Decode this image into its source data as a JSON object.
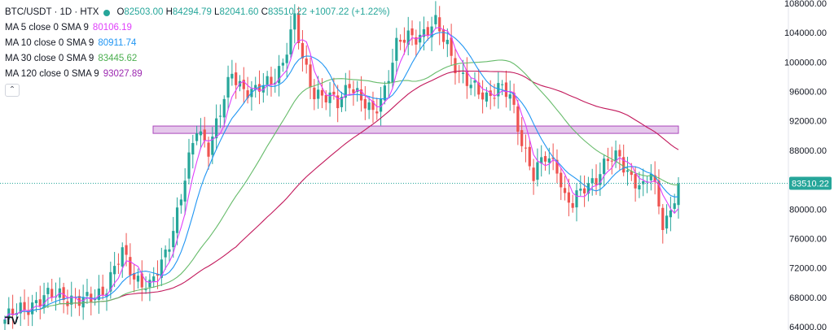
{
  "header": {
    "symbol": "BTC/USDT · 1D · HTX",
    "ohlc": {
      "o_key": "O",
      "o": "82503.00",
      "h_key": "H",
      "h": "84294.79",
      "l_key": "L",
      "l": "82041.60",
      "c_key": "C",
      "c": "83510.22",
      "change": "+1007.22 (+1.22%)"
    }
  },
  "indicators": [
    {
      "label": "MA 5 close 0 SMA 9",
      "value": "80106.19",
      "color": "#e040fb"
    },
    {
      "label": "MA 10 close 0 SMA 9",
      "value": "80911.74",
      "color": "#2196f3"
    },
    {
      "label": "MA 30 close 0 SMA 9",
      "value": "83445.62",
      "color": "#4caf50"
    },
    {
      "label": "MA 120 close 0 SMA 9",
      "value": "93027.89",
      "color": "#9c27b0"
    }
  ],
  "collapse_glyph": "⌃",
  "logo_text": "TV",
  "colors": {
    "up": "#26a69a",
    "down": "#ef5350",
    "ma5": "#e040fb",
    "ma10": "#2196f3",
    "ma30": "#66bb6a",
    "ma120": "#c2185b",
    "zone_fill": "#e1bee7",
    "zone_stroke": "#ab47bc",
    "price_line": "#26a69a"
  },
  "chart_data": {
    "type": "candlestick",
    "ylim": [
      64000,
      108000
    ],
    "yticks": [
      64000,
      68000,
      72000,
      76000,
      80000,
      84000,
      88000,
      92000,
      96000,
      100000,
      104000,
      108000
    ],
    "ytick_labels": [
      "64000.00",
      "68000.00",
      "72000.00",
      "76000.00",
      "80000.00",
      "84000.00",
      "88000.00",
      "92000.00",
      "96000.00",
      "100000.00",
      "104000.00",
      "108000.00"
    ],
    "current_price": 83510.22,
    "current_price_label": "83510.22",
    "zone": {
      "y_low": 90300,
      "y_high": 91300
    },
    "close_path": [
      [
        0,
        65000
      ],
      [
        8,
        67500
      ],
      [
        14,
        68500
      ],
      [
        20,
        67200
      ],
      [
        26,
        69500
      ],
      [
        30,
        74000
      ],
      [
        33,
        71000
      ],
      [
        37,
        69200
      ],
      [
        40,
        72500
      ],
      [
        43,
        77500
      ],
      [
        46,
        84000
      ],
      [
        49,
        91000
      ],
      [
        52,
        88500
      ],
      [
        55,
        93000
      ],
      [
        58,
        98500
      ],
      [
        61,
        96500
      ],
      [
        64,
        95800
      ],
      [
        68,
        97500
      ],
      [
        71,
        100000
      ],
      [
        74,
        105500
      ],
      [
        76,
        100500
      ],
      [
        79,
        96000
      ],
      [
        82,
        95000
      ],
      [
        85,
        94500
      ],
      [
        88,
        97500
      ],
      [
        91,
        94500
      ],
      [
        94,
        93000
      ],
      [
        97,
        96500
      ],
      [
        100,
        102000
      ],
      [
        103,
        103500
      ],
      [
        107,
        104000
      ],
      [
        110,
        105000
      ],
      [
        113,
        102500
      ],
      [
        116,
        98500
      ],
      [
        119,
        96500
      ],
      [
        123,
        95500
      ],
      [
        126,
        96500
      ],
      [
        129,
        95200
      ],
      [
        132,
        89500
      ],
      [
        135,
        84500
      ],
      [
        138,
        87000
      ],
      [
        141,
        86000
      ],
      [
        143,
        81500
      ],
      [
        145,
        80500
      ],
      [
        148,
        83000
      ],
      [
        151,
        84500
      ],
      [
        154,
        86500
      ],
      [
        157,
        87000
      ],
      [
        160,
        84500
      ],
      [
        163,
        82500
      ],
      [
        165,
        85000
      ],
      [
        168,
        78500
      ],
      [
        170,
        79500
      ],
      [
        172,
        83510
      ]
    ]
  }
}
